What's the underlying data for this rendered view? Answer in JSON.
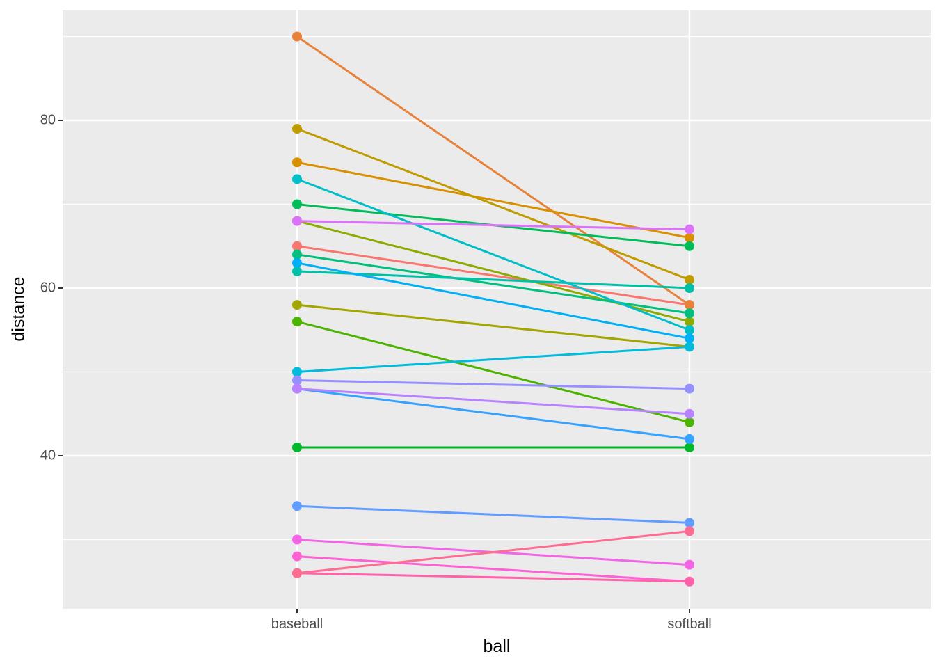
{
  "figure": {
    "x_axis_title": "ball",
    "y_axis_title": "distance",
    "y_tick_labels": [
      "80",
      "60",
      "40"
    ],
    "x_tick_labels": [
      "baseball",
      "softball"
    ],
    "panel_bg": "#EBEBEB",
    "gridline_color": "#FFFFFF",
    "tick_mark_color": "#333333",
    "tick_label_color": "#4D4D4D"
  },
  "chart_data": {
    "type": "line",
    "subtype": "paired-slope-chart",
    "title": "",
    "xlabel": "ball",
    "ylabel": "distance",
    "categories": [
      "baseball",
      "softball"
    ],
    "ylim": [
      22,
      93
    ],
    "yticks_major": [
      40,
      60,
      80
    ],
    "yticks_minor": [
      30,
      50,
      70,
      90
    ],
    "grid": true,
    "legend": "none",
    "point_radius": 7,
    "line_width": 3,
    "series": [
      {
        "name": "salmon",
        "color": "#F8766D",
        "values": [
          65,
          58
        ]
      },
      {
        "name": "orange",
        "color": "#E8823A",
        "values": [
          90,
          58
        ]
      },
      {
        "name": "amber",
        "color": "#D89000",
        "values": [
          75,
          66
        ]
      },
      {
        "name": "gold",
        "color": "#C09B00",
        "values": [
          79,
          61
        ]
      },
      {
        "name": "olive",
        "color": "#A3A500",
        "values": [
          58,
          53
        ]
      },
      {
        "name": "yellow-green",
        "color": "#8CAB00",
        "values": [
          68,
          56
        ]
      },
      {
        "name": "green",
        "color": "#4CB400",
        "values": [
          56,
          44
        ]
      },
      {
        "name": "bright-green",
        "color": "#00B92A",
        "values": [
          41,
          41
        ]
      },
      {
        "name": "emerald",
        "color": "#00BC59",
        "values": [
          70,
          65
        ]
      },
      {
        "name": "sea-green",
        "color": "#00BF7F",
        "values": [
          64,
          57
        ]
      },
      {
        "name": "teal",
        "color": "#00C0A9",
        "values": [
          62,
          60
        ]
      },
      {
        "name": "teal-cyan",
        "color": "#00BFC8",
        "values": [
          73,
          55
        ]
      },
      {
        "name": "cyan",
        "color": "#00BBDC",
        "values": [
          50,
          53
        ]
      },
      {
        "name": "sky-blue",
        "color": "#00B0F6",
        "values": [
          63,
          54
        ]
      },
      {
        "name": "azure",
        "color": "#35A2FF",
        "values": [
          48,
          42
        ]
      },
      {
        "name": "cornflower",
        "color": "#619CFF",
        "values": [
          34,
          32
        ]
      },
      {
        "name": "periwinkle",
        "color": "#9590FF",
        "values": [
          49,
          48
        ]
      },
      {
        "name": "lavender",
        "color": "#B983FF",
        "values": [
          48,
          45
        ]
      },
      {
        "name": "orchid",
        "color": "#DC71FA",
        "values": [
          68,
          67
        ]
      },
      {
        "name": "magenta",
        "color": "#F265E4",
        "values": [
          30,
          27
        ]
      },
      {
        "name": "pink",
        "color": "#FD61D3",
        "values": [
          28,
          25
        ]
      },
      {
        "name": "hot-pink",
        "color": "#FF62A9",
        "values": [
          26,
          25
        ]
      },
      {
        "name": "rose",
        "color": "#FF6C91",
        "values": [
          26,
          31
        ]
      }
    ]
  }
}
